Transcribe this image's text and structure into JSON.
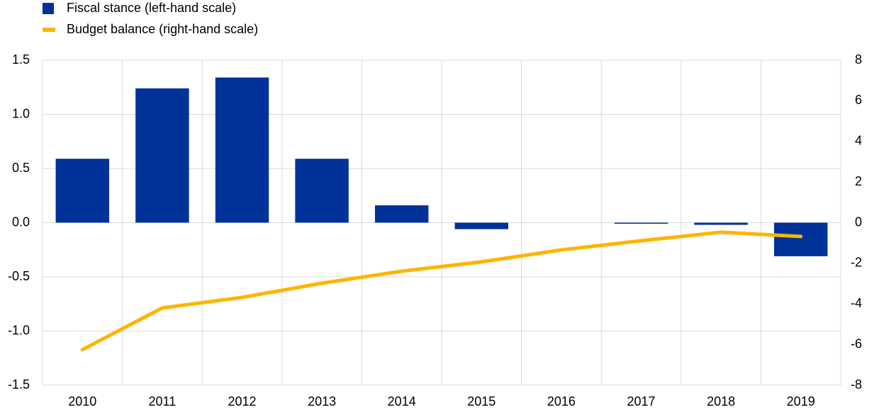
{
  "chart_data": {
    "type": "bar",
    "categories": [
      "2010",
      "2011",
      "2012",
      "2013",
      "2014",
      "2015",
      "2016",
      "2017",
      "2018",
      "2019"
    ],
    "series": [
      {
        "name": "Fiscal stance (left-hand scale)",
        "type": "bar",
        "axis": "y",
        "color": "#003299",
        "values": [
          0.59,
          1.24,
          1.34,
          0.59,
          0.16,
          -0.06,
          0.0,
          -0.01,
          -0.02,
          -0.31
        ]
      },
      {
        "name": "Budget balance (right-hand scale)",
        "type": "line",
        "axis": "y2",
        "color": "#ffb400",
        "values": [
          -6.25,
          -4.2,
          -3.68,
          -2.98,
          -2.39,
          -1.93,
          -1.34,
          -0.89,
          -0.47,
          -0.68
        ]
      }
    ],
    "ylim": [
      -1.5,
      1.5
    ],
    "yticks": [
      -1.5,
      {
        "value": -1.0,
        "label": "-1.0"
      },
      -0.5,
      {
        "value": 0.0,
        "label": "0.0"
      },
      0.5,
      {
        "value": 1.0,
        "label": "1.0"
      },
      1.5
    ],
    "y2lim": [
      -8,
      8
    ],
    "y2ticks": [
      -8,
      -6,
      -4,
      -2,
      0,
      2,
      4,
      6,
      8
    ],
    "grid": true
  }
}
